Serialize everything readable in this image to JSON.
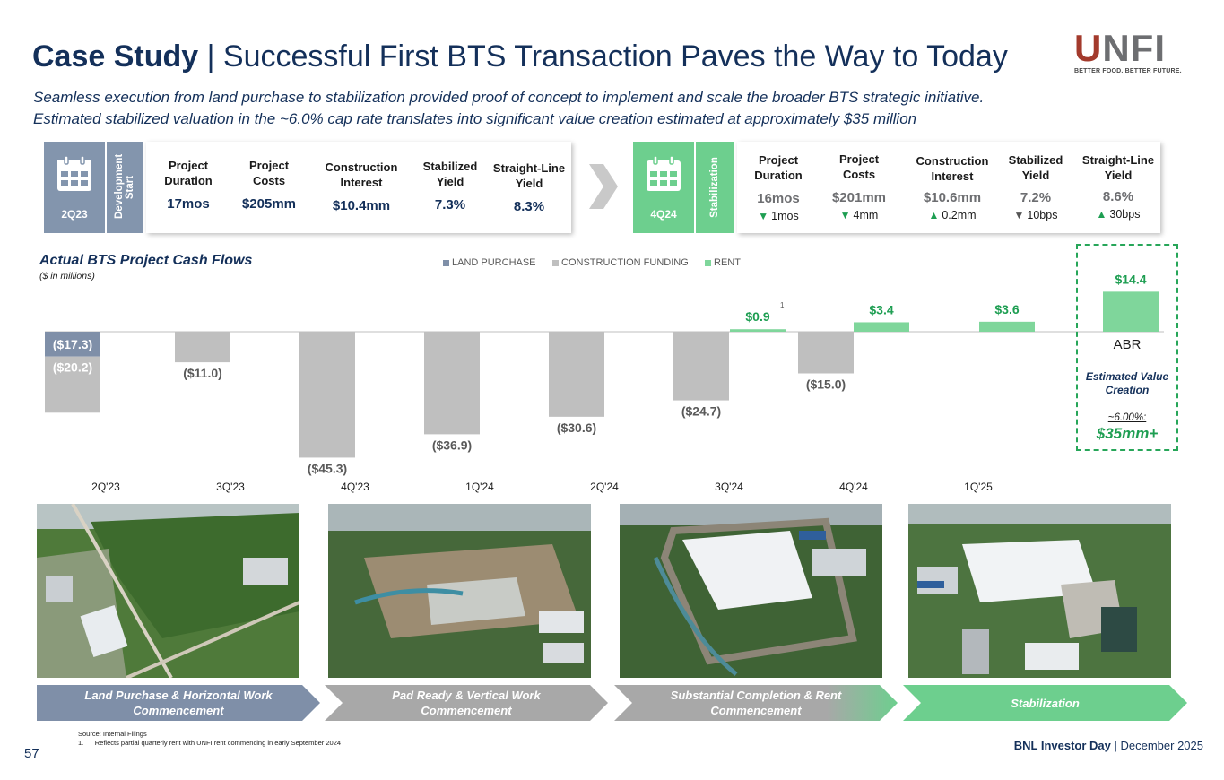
{
  "header": {
    "title_bold": "Case Study",
    "title_rest": " | Successful First BTS Transaction Paves the Way to Today",
    "subtitle_line1": "Seamless execution from land purchase to stabilization provided proof of concept to implement and scale the broader BTS strategic initiative.",
    "subtitle_line2": "Estimated stabilized valuation in the ~6.0% cap rate translates into significant value creation estimated at approximately $35 million"
  },
  "logo": {
    "word_u": "U",
    "word_rest": "NFI",
    "tagline": "BETTER FOOD. BETTER FUTURE."
  },
  "development": {
    "quarter": "2Q23",
    "label": "Development Start",
    "metrics": [
      {
        "label": "Project Duration",
        "value": "17mos"
      },
      {
        "label": "Project Costs",
        "value": "$205mm"
      },
      {
        "label": "Construction Interest",
        "value": "$10.4mm"
      },
      {
        "label": "Stabilized Yield",
        "value": "7.3%"
      },
      {
        "label": "Straight-Line Yield",
        "value": "8.3%"
      }
    ]
  },
  "stabilization": {
    "quarter": "4Q24",
    "label": "Stabilization",
    "metrics": [
      {
        "label": "Project Duration",
        "value": "16mos",
        "delta": "1mos",
        "dir": "down"
      },
      {
        "label": "Project Costs",
        "value": "$201mm",
        "delta": "4mm",
        "dir": "down"
      },
      {
        "label": "Construction Interest",
        "value": "$10.6mm",
        "delta": "0.2mm",
        "dir": "up"
      },
      {
        "label": "Stabilized Yield",
        "value": "7.2%",
        "delta": "10bps",
        "dir": "down"
      },
      {
        "label": "Straight-Line Yield",
        "value": "8.6%",
        "delta": "30bps",
        "dir": "up"
      }
    ]
  },
  "chart_data": {
    "type": "bar",
    "title": "Actual BTS Project Cash Flows",
    "subtitle": "($ in millions)",
    "legend": [
      "LAND PURCHASE",
      "CONSTRUCTION FUNDING",
      "RENT"
    ],
    "categories": [
      "2Q'23",
      "3Q'23",
      "4Q'23",
      "1Q'24",
      "2Q'24",
      "3Q'24",
      "4Q'24",
      "1Q'25",
      "ABR"
    ],
    "series": [
      {
        "name": "LAND PURCHASE",
        "color": "#7f8fa8",
        "values": [
          -17.3,
          0,
          0,
          0,
          0,
          0,
          0,
          0,
          0
        ],
        "labels": [
          "($17.3)",
          "",
          "",
          "",
          "",
          "",
          "",
          "",
          ""
        ]
      },
      {
        "name": "CONSTRUCTION FUNDING",
        "color": "#bfbfbf",
        "values": [
          -20.2,
          -11.0,
          -45.3,
          -36.9,
          -30.6,
          -24.7,
          -15.0,
          0,
          0
        ],
        "labels": [
          "($20.2)",
          "($11.0)",
          "($45.3)",
          "($36.9)",
          "($30.6)",
          "($24.7)",
          "($15.0)",
          "",
          ""
        ]
      },
      {
        "name": "RENT",
        "color": "#7fd69b",
        "values": [
          0,
          0,
          0,
          0,
          0,
          0.9,
          3.4,
          3.6,
          14.4
        ],
        "labels": [
          "",
          "",
          "",
          "",
          "",
          "$0.9",
          "$3.4",
          "$3.6",
          "$14.4"
        ]
      }
    ],
    "footnote_marker": "1",
    "abr_label": "ABR",
    "value_creation_label": "Estimated Value Creation",
    "cap_rate": "~6.00%:",
    "value_creation": "$35mm+"
  },
  "phases": [
    "Land Purchase & Horizontal Work Commencement",
    "Pad Ready & Vertical Work Commencement",
    "Substantial Completion & Rent Commencement",
    "Stabilization"
  ],
  "footer": {
    "source": "Source: Internal Filings",
    "note": "1.      Reflects partial quarterly rent with UNFI rent commencing in early September 2024",
    "page": "57",
    "event": "BNL Investor Day",
    "date": " | December 2025"
  },
  "colors": {
    "navy": "#14305a",
    "slate": "#7f8fa8",
    "gray": "#bfbfbf",
    "green": "#7fd69b",
    "calendar_gray": "#8395ad",
    "calendar_green": "#6dcf8e"
  }
}
